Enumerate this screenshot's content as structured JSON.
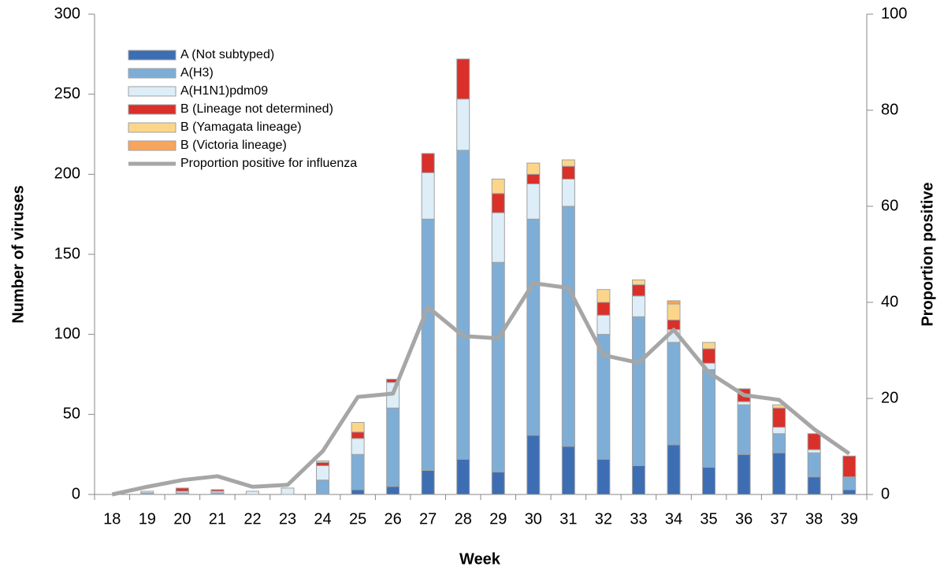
{
  "chart_data": {
    "type": "bar",
    "x_label": "Week",
    "y_label": "Number of viruses",
    "y2_label": "Proportion positive",
    "categories": [
      "18",
      "19",
      "20",
      "21",
      "22",
      "23",
      "24",
      "25",
      "26",
      "27",
      "28",
      "29",
      "30",
      "31",
      "32",
      "33",
      "34",
      "35",
      "36",
      "37",
      "38",
      "39"
    ],
    "ylim": [
      0,
      300
    ],
    "yticks": [
      0,
      50,
      100,
      150,
      200,
      250,
      300
    ],
    "y2lim": [
      0,
      100
    ],
    "y2ticks": [
      0,
      20,
      40,
      60,
      80,
      100
    ],
    "stacked": true,
    "series": [
      {
        "name": "A (Not subtyped)",
        "color": "#3d6eb4",
        "values": [
          0,
          0,
          0,
          0,
          0,
          0,
          0,
          3,
          5,
          15,
          22,
          14,
          37,
          30,
          22,
          18,
          31,
          17,
          25,
          26,
          11,
          3
        ]
      },
      {
        "name": "A(H3)",
        "color": "#7eaed6",
        "values": [
          0,
          1,
          1,
          1,
          0,
          0,
          9,
          22,
          49,
          157,
          193,
          131,
          135,
          150,
          78,
          93,
          64,
          61,
          31,
          12,
          15,
          8
        ]
      },
      {
        "name": "A(H1N1)pdm09",
        "color": "#ddeef8",
        "values": [
          0,
          1,
          1,
          1,
          2,
          4,
          9,
          10,
          16,
          29,
          32,
          31,
          22,
          17,
          12,
          13,
          8,
          4,
          2,
          4,
          2,
          0
        ]
      },
      {
        "name": "B (Lineage not determined)",
        "color": "#d9302a",
        "values": [
          0,
          0,
          2,
          1,
          0,
          0,
          2,
          4,
          2,
          12,
          25,
          12,
          6,
          8,
          8,
          7,
          6,
          9,
          8,
          12,
          10,
          13
        ]
      },
      {
        "name": "B (Yamagata lineage)",
        "color": "#fbd68a",
        "values": [
          0,
          0,
          0,
          0,
          0,
          0,
          1,
          6,
          0,
          0,
          0,
          9,
          7,
          4,
          8,
          3,
          10,
          4,
          0,
          2,
          0,
          0
        ]
      },
      {
        "name": "B (Victoria lineage)",
        "color": "#f7a55c",
        "values": [
          0,
          0,
          0,
          0,
          0,
          0,
          0,
          0,
          0,
          0,
          0,
          0,
          0,
          0,
          0,
          0,
          2,
          0,
          0,
          0,
          0,
          0
        ]
      },
      {
        "name": "Proportion positive for influenza",
        "color": "#a6a6a6",
        "type": "line",
        "axis": "y2",
        "values": [
          0,
          1.6,
          3,
          3.8,
          1.6,
          2,
          9,
          20.3,
          21,
          39,
          33,
          32.5,
          44,
          43,
          29,
          27.4,
          34.3,
          25.4,
          20.7,
          19.7,
          13.6,
          8.5
        ]
      }
    ]
  }
}
